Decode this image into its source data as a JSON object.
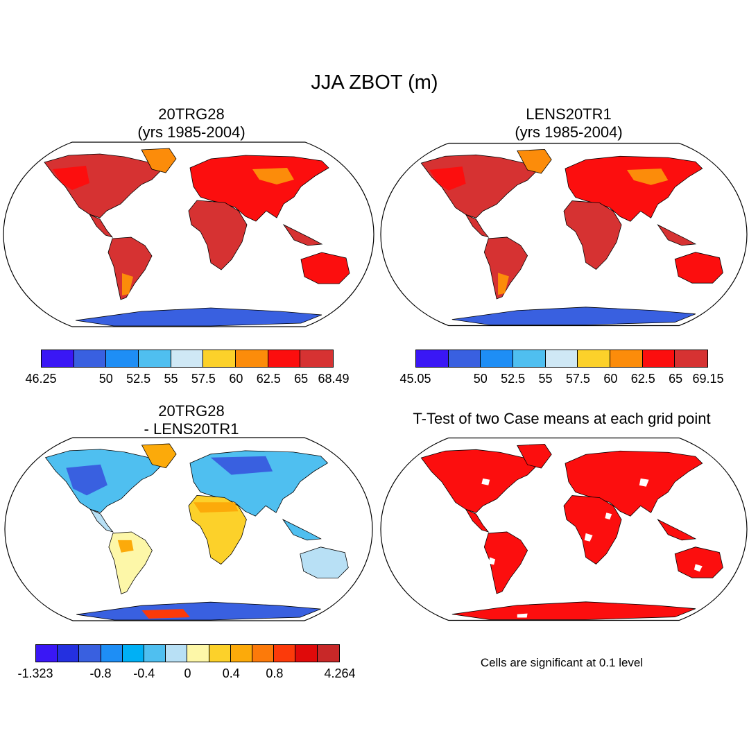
{
  "figure": {
    "title": "JJA ZBOT (m)"
  },
  "panels": [
    {
      "id": "tl",
      "title_line1": "20TRG28",
      "title_line2": "(yrs 1985-2004)",
      "colorbar": {
        "colors": [
          "#3a17f5",
          "#3960e0",
          "#1e8ef5",
          "#4fbff0",
          "#cfe8f5",
          "#fcd12a",
          "#fc8c0a",
          "#fc0e0e",
          "#d63232"
        ],
        "labels": [
          "46.25",
          "50",
          "52.5",
          "55",
          "57.5",
          "60",
          "62.5",
          "65",
          "68.49"
        ],
        "label_positions": [
          0,
          2,
          3,
          4,
          5,
          6,
          7,
          8,
          9
        ]
      }
    },
    {
      "id": "tr",
      "title_line1": "LENS20TR1",
      "title_line2": "(yrs 1985-2004)",
      "colorbar": {
        "colors": [
          "#3a17f5",
          "#3960e0",
          "#1e8ef5",
          "#4fbff0",
          "#cfe8f5",
          "#fcd12a",
          "#fc8c0a",
          "#fc0e0e",
          "#d63232"
        ],
        "labels": [
          "45.05",
          "50",
          "52.5",
          "55",
          "57.5",
          "60",
          "62.5",
          "65",
          "69.15"
        ],
        "label_positions": [
          0,
          2,
          3,
          4,
          5,
          6,
          7,
          8,
          9
        ]
      }
    },
    {
      "id": "bl",
      "title_line1": "20TRG28",
      "title_line2": "- LENS20TR1",
      "colorbar": {
        "colors": [
          "#3a17f5",
          "#2430e0",
          "#3960e0",
          "#1e8ef5",
          "#00b0f5",
          "#4fbff0",
          "#b8e0f5",
          "#fdf7a8",
          "#fcd12a",
          "#fcaa0a",
          "#fc7a0a",
          "#fc3a0a",
          "#e00a0a",
          "#c82828"
        ],
        "labels": [
          "-1.323",
          "-0.8",
          "-0.4",
          "0",
          "0.4",
          "0.8",
          "4.264"
        ],
        "label_positions": [
          0,
          3,
          5,
          7,
          9,
          11,
          14
        ]
      }
    },
    {
      "id": "br",
      "title_line1": "T-Test of two Case means at each grid point",
      "note": "Cells are significant at 0.1 level"
    }
  ]
}
